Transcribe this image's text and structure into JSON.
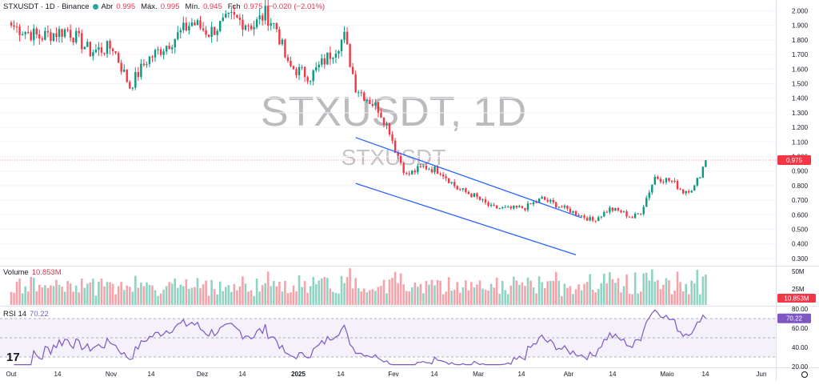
{
  "header": {
    "symbol": "STXUSDT · 1D · Binance",
    "status_color": "#26a69a",
    "ohlc": [
      {
        "key": "Abr",
        "value": "0.995"
      },
      {
        "key": "Máx.",
        "value": "0.995"
      },
      {
        "key": "Mín.",
        "value": "0.945"
      },
      {
        "key": "Fch",
        "value": "0.975"
      }
    ],
    "change": "−0.020 (−2.01%)"
  },
  "watermark": {
    "big": "STXUSDT, 1D",
    "small": "STXUSDT"
  },
  "colors": {
    "up": "#089981",
    "down": "#f23645",
    "channel": "#2962ff",
    "rsi": "#7e57c2",
    "vol_up": "#8fd3c3",
    "vol_down": "#f5a3ab",
    "rsi_bg": "#ede7f6",
    "price_line": "#f23645"
  },
  "volume_pane": {
    "label": "Volume",
    "value": "10.853M",
    "axis_labels": [
      "50M",
      "25M"
    ],
    "badge": "10.853M"
  },
  "rsi_pane": {
    "label": "RSI 14",
    "value": "70.22",
    "axis_labels": [
      "80.00",
      "60.00",
      "40.00",
      "20.00"
    ],
    "badge": "70.22"
  },
  "price_badge": "0.975",
  "logo": "17",
  "chart_data": {
    "type": "candlestick",
    "price_axis": {
      "ticks": [
        "2.000",
        "1.900",
        "1.800",
        "1.700",
        "1.600",
        "1.500",
        "1.400",
        "1.300",
        "1.200",
        "1.100",
        "1.000",
        "0.900",
        "0.800",
        "0.700",
        "0.600",
        "0.500",
        "0.400",
        "0.300"
      ],
      "range": [
        0.25,
        2.03
      ]
    },
    "time_axis": {
      "ticks": [
        "Out",
        "14",
        "Nov",
        "14",
        "Dez",
        "14",
        "2025",
        "14",
        "Fev",
        "14",
        "Mar",
        "14",
        "Abr",
        "14",
        "Maio",
        "14",
        "Jun"
      ],
      "bold": [
        "2025"
      ]
    },
    "last_price": 0.975,
    "rsi_last": 70.22,
    "rsi_bands": {
      "upper": 70,
      "middle": 50,
      "lower": 30
    },
    "channel": {
      "upper": {
        "from": {
          "date": "2025-01-31",
          "price": 1.13
        },
        "to": {
          "date": "2025-04-21",
          "price": 0.58
        }
      },
      "lower": {
        "from": {
          "date": "2025-01-31",
          "price": 0.815
        },
        "to": {
          "date": "2025-04-19",
          "price": 0.325
        }
      }
    },
    "anchors": [
      [
        0,
        1.9
      ],
      [
        10,
        1.82
      ],
      [
        20,
        1.87
      ],
      [
        28,
        1.72
      ],
      [
        36,
        1.75
      ],
      [
        42,
        1.48
      ],
      [
        48,
        1.66
      ],
      [
        56,
        1.78
      ],
      [
        64,
        1.92
      ],
      [
        70,
        1.85
      ],
      [
        78,
        1.95
      ],
      [
        86,
        1.9
      ],
      [
        90,
        1.98
      ],
      [
        94,
        1.88
      ],
      [
        98,
        1.62
      ],
      [
        106,
        1.55
      ],
      [
        112,
        1.68
      ],
      [
        118,
        1.82
      ],
      [
        122,
        1.48
      ],
      [
        126,
        1.4
      ],
      [
        130,
        1.33
      ],
      [
        134,
        1.18
      ],
      [
        136,
        1.05
      ],
      [
        140,
        0.87
      ],
      [
        146,
        0.93
      ],
      [
        152,
        0.9
      ],
      [
        158,
        0.78
      ],
      [
        164,
        0.73
      ],
      [
        170,
        0.65
      ],
      [
        176,
        0.64
      ],
      [
        182,
        0.65
      ],
      [
        188,
        0.71
      ],
      [
        194,
        0.66
      ],
      [
        200,
        0.61
      ],
      [
        206,
        0.56
      ],
      [
        212,
        0.64
      ],
      [
        216,
        0.62
      ],
      [
        220,
        0.58
      ],
      [
        223,
        0.62
      ],
      [
        228,
        0.86
      ],
      [
        234,
        0.83
      ],
      [
        238,
        0.76
      ],
      [
        242,
        0.79
      ],
      [
        244,
        0.88
      ],
      [
        246,
        0.975
      ]
    ]
  }
}
